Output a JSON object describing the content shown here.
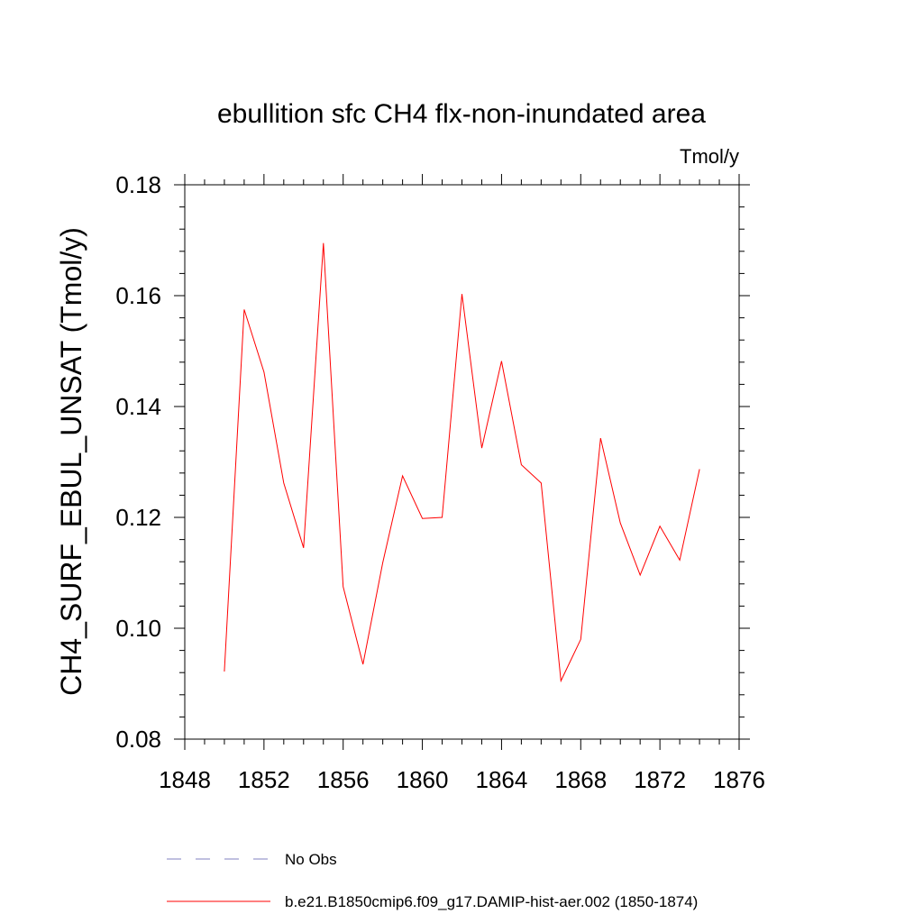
{
  "chart_data": {
    "type": "line",
    "title": "ebullition sfc CH4 flx-non-inundated area",
    "units_label": "Tmol/y",
    "xlabel": "",
    "ylabel": "CH4_SURF_EBUL_UNSAT  (Tmol/y)",
    "xlim": [
      1848,
      1876
    ],
    "ylim": [
      0.08,
      0.18
    ],
    "x_ticks": [
      "1848",
      "1852",
      "1856",
      "1860",
      "1864",
      "1868",
      "1872",
      "1876"
    ],
    "y_ticks": [
      "0.08",
      "0.10",
      "0.12",
      "0.14",
      "0.16",
      "0.18"
    ],
    "grid": false,
    "legend_position": "bottom",
    "series": [
      {
        "name": "b.e21.B1850cmip6.f09_g17.DAMIP-hist-aer.002 (1850-1874)",
        "color": "#ff0000",
        "style": "solid",
        "x": [
          1850,
          1851,
          1852,
          1853,
          1854,
          1855,
          1856,
          1857,
          1858,
          1859,
          1860,
          1861,
          1862,
          1863,
          1864,
          1865,
          1866,
          1867,
          1868,
          1869,
          1870,
          1871,
          1872,
          1873,
          1874
        ],
        "y": [
          0.0922,
          0.1575,
          0.1462,
          0.1262,
          0.1145,
          0.1695,
          0.1075,
          0.0935,
          0.1118,
          0.1275,
          0.1198,
          0.12,
          0.1603,
          0.1325,
          0.1482,
          0.1295,
          0.1262,
          0.0905,
          0.098,
          0.1343,
          0.119,
          0.1096,
          0.1184,
          0.1123,
          0.1287
        ]
      }
    ],
    "legend": [
      {
        "label": "No Obs",
        "color": "#8080c0",
        "style": "dashed"
      },
      {
        "label": "b.e21.B1850cmip6.f09_g17.DAMIP-hist-aer.002 (1850-1874)",
        "color": "#ff0000",
        "style": "solid"
      }
    ]
  }
}
